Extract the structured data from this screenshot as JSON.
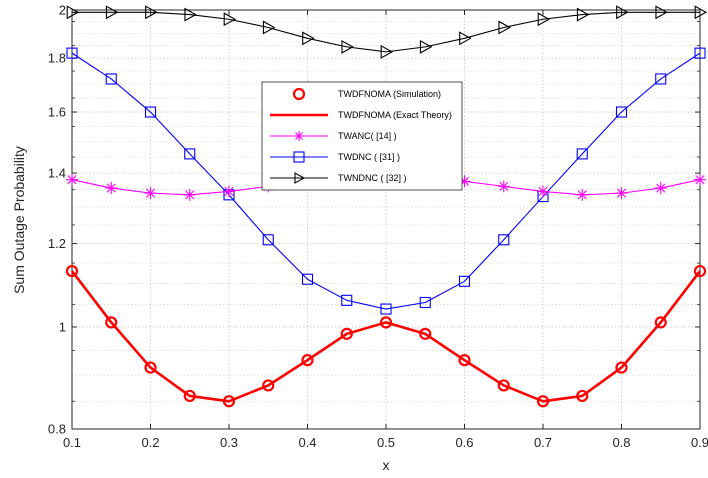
{
  "chart_data": {
    "type": "line",
    "title": "",
    "xlabel": "x",
    "ylabel": "Sum Outage Probability",
    "xlim": [
      0.1,
      0.9
    ],
    "ylim": [
      0.8,
      2.0
    ],
    "y_scale": "log",
    "grid": true,
    "legend_position": "center",
    "x_ticks": [
      "0.1",
      "0.2",
      "0.3",
      "0.4",
      "0.5",
      "0.6",
      "0.7",
      "0.8",
      "0.9"
    ],
    "y_ticks": [
      {
        "value": 0.8,
        "label": "0.8"
      },
      {
        "value": 1.0,
        "label": "1"
      },
      {
        "value": 1.2,
        "label": "1.2"
      },
      {
        "value": 1.4,
        "label": "1.4"
      },
      {
        "value": 1.6,
        "label": "1.6"
      },
      {
        "value": 1.8,
        "label": "1.8"
      },
      {
        "value": 2.0,
        "label": "2"
      }
    ],
    "x": [
      0.1,
      0.15,
      0.2,
      0.25,
      0.3,
      0.35,
      0.4,
      0.45,
      0.5,
      0.55,
      0.6,
      0.65,
      0.7,
      0.75,
      0.8,
      0.85,
      0.9
    ],
    "series": [
      {
        "name": "TWDFNOMA (Simulation)",
        "color": "#ff0000",
        "marker": "circle",
        "line": "none",
        "values": [
          1.13,
          1.01,
          0.915,
          0.86,
          0.85,
          0.88,
          0.93,
          0.985,
          1.01,
          0.985,
          0.93,
          0.88,
          0.85,
          0.86,
          0.915,
          1.01,
          1.13
        ]
      },
      {
        "name": "TWDFNOMA (Exact Theory)",
        "color": "#ff0000",
        "marker": "none",
        "line": "solid",
        "values": [
          1.13,
          1.01,
          0.915,
          0.86,
          0.85,
          0.88,
          0.93,
          0.985,
          1.01,
          0.985,
          0.93,
          0.88,
          0.85,
          0.86,
          0.915,
          1.01,
          1.13
        ]
      },
      {
        "name": "TWANC( [14] )",
        "color": "#ff00ff",
        "marker": "star",
        "line": "solid",
        "values": [
          1.38,
          1.355,
          1.34,
          1.335,
          1.345,
          1.36,
          1.375,
          1.385,
          1.39,
          1.39,
          1.375,
          1.36,
          1.345,
          1.335,
          1.34,
          1.355,
          1.38
        ]
      },
      {
        "name": "TWDNC ( [31] )",
        "color": "#0000ff",
        "marker": "square",
        "line": "solid",
        "values": [
          1.82,
          1.72,
          1.6,
          1.46,
          1.335,
          1.21,
          1.11,
          1.06,
          1.04,
          1.055,
          1.105,
          1.21,
          1.33,
          1.46,
          1.6,
          1.72,
          1.82
        ]
      },
      {
        "name": "TWNDNC ( [32] )",
        "color": "#000000",
        "marker": "triangle-right",
        "line": "solid",
        "values": [
          1.99,
          1.99,
          1.99,
          1.98,
          1.96,
          1.925,
          1.88,
          1.845,
          1.825,
          1.845,
          1.88,
          1.925,
          1.96,
          1.98,
          1.99,
          1.99,
          1.99
        ]
      }
    ]
  }
}
